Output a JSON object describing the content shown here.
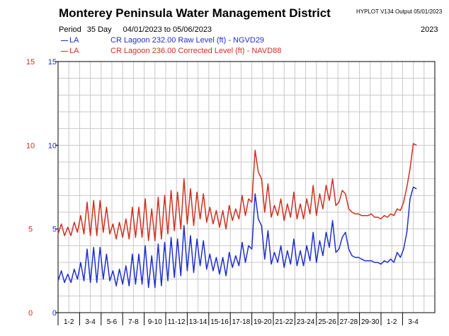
{
  "header": {
    "title": "Monterey Peninsula Water Management District",
    "meta": "HYPLOT V134  Output 05/01/2023",
    "period_label": "Period",
    "period_days": "35 Day",
    "date_range": "04/01/2023  to  05/06/2023",
    "year": "2023"
  },
  "chart_data": {
    "type": "line",
    "title": "Monterey Peninsula Water Management District",
    "xlabel": "",
    "ylabel": "",
    "ylim": [
      0,
      15
    ],
    "y_ticks_left": [
      "0",
      "5",
      "10",
      "15"
    ],
    "y_ticks_right": [
      "0",
      "5",
      "10",
      "15"
    ],
    "x_start": "04/01/2023",
    "x_days": 35,
    "x_tick_labels": [
      "1-2",
      "3-4",
      "5-6",
      "7-8",
      "9-10",
      "11-12",
      "13-14",
      "15-16",
      "17-18",
      "19-20",
      "21-22",
      "23-24",
      "25-26",
      "27-28",
      "29-30",
      "1-2",
      "3-4"
    ],
    "grid": true,
    "legend_position": "top-left",
    "series": [
      {
        "code": "LA",
        "name": "CR Lagoon  232.00 Raw Level (ft) - NGVD29",
        "color": "#1f2fd0",
        "x": [
          0.0,
          0.3,
          0.6,
          0.9,
          1.2,
          1.5,
          1.8,
          2.1,
          2.4,
          2.7,
          3.0,
          3.3,
          3.6,
          3.9,
          4.2,
          4.5,
          4.8,
          5.1,
          5.4,
          5.7,
          6.0,
          6.3,
          6.6,
          6.9,
          7.2,
          7.5,
          7.8,
          8.1,
          8.4,
          8.7,
          9.0,
          9.3,
          9.6,
          9.9,
          10.2,
          10.5,
          10.8,
          11.1,
          11.4,
          11.7,
          12.0,
          12.3,
          12.6,
          12.9,
          13.2,
          13.5,
          13.8,
          14.1,
          14.4,
          14.7,
          15.0,
          15.3,
          15.6,
          15.9,
          16.2,
          16.5,
          16.8,
          17.1,
          17.4,
          17.7,
          18.0,
          18.3,
          18.6,
          18.9,
          19.2,
          19.5,
          19.8,
          20.1,
          20.4,
          20.7,
          21.0,
          21.3,
          21.6,
          21.9,
          22.2,
          22.5,
          22.8,
          23.1,
          23.4,
          23.7,
          24.0,
          24.3,
          24.6,
          24.9,
          25.2,
          25.5,
          25.8,
          26.1,
          26.4,
          26.7,
          27.0,
          27.3,
          27.6,
          27.9,
          28.2,
          28.5,
          28.8,
          29.1,
          29.4,
          29.7,
          30.0,
          30.3,
          30.6,
          30.9,
          31.2,
          31.5,
          31.8,
          32.1,
          32.4,
          32.7,
          33.0,
          33.3
        ],
        "values": [
          1.9,
          2.5,
          1.8,
          2.3,
          1.8,
          2.6,
          2.0,
          3.0,
          1.9,
          3.8,
          1.8,
          3.9,
          1.8,
          3.9,
          2.0,
          3.5,
          1.9,
          2.5,
          1.6,
          2.6,
          1.7,
          2.8,
          1.6,
          3.5,
          1.7,
          3.5,
          1.7,
          4.0,
          1.5,
          3.4,
          1.5,
          4.1,
          1.6,
          4.2,
          1.9,
          4.5,
          2.1,
          4.4,
          2.2,
          5.2,
          2.5,
          4.6,
          2.4,
          4.4,
          2.8,
          4.3,
          2.6,
          3.5,
          2.5,
          3.3,
          2.3,
          3.3,
          2.2,
          3.6,
          2.7,
          3.4,
          2.8,
          4.2,
          3.0,
          4.0,
          3.8,
          7.1,
          5.6,
          5.2,
          3.2,
          4.9,
          2.9,
          3.6,
          3.0,
          4.0,
          2.7,
          3.7,
          2.9,
          4.4,
          2.8,
          3.7,
          2.8,
          4.0,
          3.1,
          4.8,
          3.0,
          4.3,
          3.4,
          4.8,
          3.9,
          5.5,
          3.6,
          3.8,
          4.5,
          4.8,
          3.8,
          3.4,
          3.3,
          3.3,
          3.2,
          3.1,
          3.1,
          3.1,
          3.0,
          3.0,
          2.9,
          3.1,
          3.0,
          3.2,
          3.0,
          3.6,
          3.3,
          3.8,
          4.8,
          6.8,
          7.5,
          7.4
        ]
      },
      {
        "code": "LA",
        "name": "CR Lagoon  236.00 Corrected Level (ft) - NAVD88",
        "color": "#d03020",
        "x": [
          0.0,
          0.3,
          0.6,
          0.9,
          1.2,
          1.5,
          1.8,
          2.1,
          2.4,
          2.7,
          3.0,
          3.3,
          3.6,
          3.9,
          4.2,
          4.5,
          4.8,
          5.1,
          5.4,
          5.7,
          6.0,
          6.3,
          6.6,
          6.9,
          7.2,
          7.5,
          7.8,
          8.1,
          8.4,
          8.7,
          9.0,
          9.3,
          9.6,
          9.9,
          10.2,
          10.5,
          10.8,
          11.1,
          11.4,
          11.7,
          12.0,
          12.3,
          12.6,
          12.9,
          13.2,
          13.5,
          13.8,
          14.1,
          14.4,
          14.7,
          15.0,
          15.3,
          15.6,
          15.9,
          16.2,
          16.5,
          16.8,
          17.1,
          17.4,
          17.7,
          18.0,
          18.3,
          18.6,
          18.9,
          19.2,
          19.5,
          19.8,
          20.1,
          20.4,
          20.7,
          21.0,
          21.3,
          21.6,
          21.9,
          22.2,
          22.5,
          22.8,
          23.1,
          23.4,
          23.7,
          24.0,
          24.3,
          24.6,
          24.9,
          25.2,
          25.5,
          25.8,
          26.1,
          26.4,
          26.7,
          27.0,
          27.3,
          27.6,
          27.9,
          28.2,
          28.5,
          28.8,
          29.1,
          29.4,
          29.7,
          30.0,
          30.3,
          30.6,
          30.9,
          31.2,
          31.5,
          31.8,
          32.1,
          32.4,
          32.7,
          33.0,
          33.3
        ],
        "values": [
          4.7,
          5.3,
          4.6,
          5.1,
          4.6,
          5.4,
          4.8,
          5.8,
          4.7,
          6.6,
          4.6,
          6.7,
          4.6,
          6.7,
          4.8,
          6.3,
          4.7,
          5.3,
          4.4,
          5.4,
          4.5,
          5.6,
          4.4,
          6.3,
          4.5,
          6.3,
          4.5,
          6.8,
          4.3,
          6.2,
          4.3,
          6.9,
          4.4,
          7.0,
          4.7,
          7.3,
          4.9,
          7.2,
          5.0,
          8.0,
          5.3,
          7.4,
          5.2,
          7.2,
          5.6,
          7.1,
          5.4,
          6.3,
          5.3,
          6.1,
          5.1,
          6.1,
          5.0,
          6.4,
          5.5,
          6.2,
          5.6,
          7.0,
          5.8,
          6.8,
          6.6,
          9.7,
          8.4,
          8.0,
          6.0,
          7.7,
          5.7,
          6.4,
          5.8,
          6.8,
          5.5,
          6.5,
          5.7,
          7.2,
          5.6,
          6.5,
          5.6,
          6.8,
          5.9,
          7.6,
          5.8,
          7.1,
          6.2,
          7.6,
          6.7,
          8.0,
          6.4,
          6.6,
          7.3,
          7.1,
          6.2,
          6.0,
          5.9,
          5.9,
          5.8,
          5.8,
          5.8,
          5.9,
          5.7,
          5.7,
          5.6,
          5.8,
          5.7,
          5.9,
          5.8,
          6.2,
          6.1,
          6.6,
          7.5,
          8.6,
          10.1,
          10.0
        ]
      }
    ]
  }
}
